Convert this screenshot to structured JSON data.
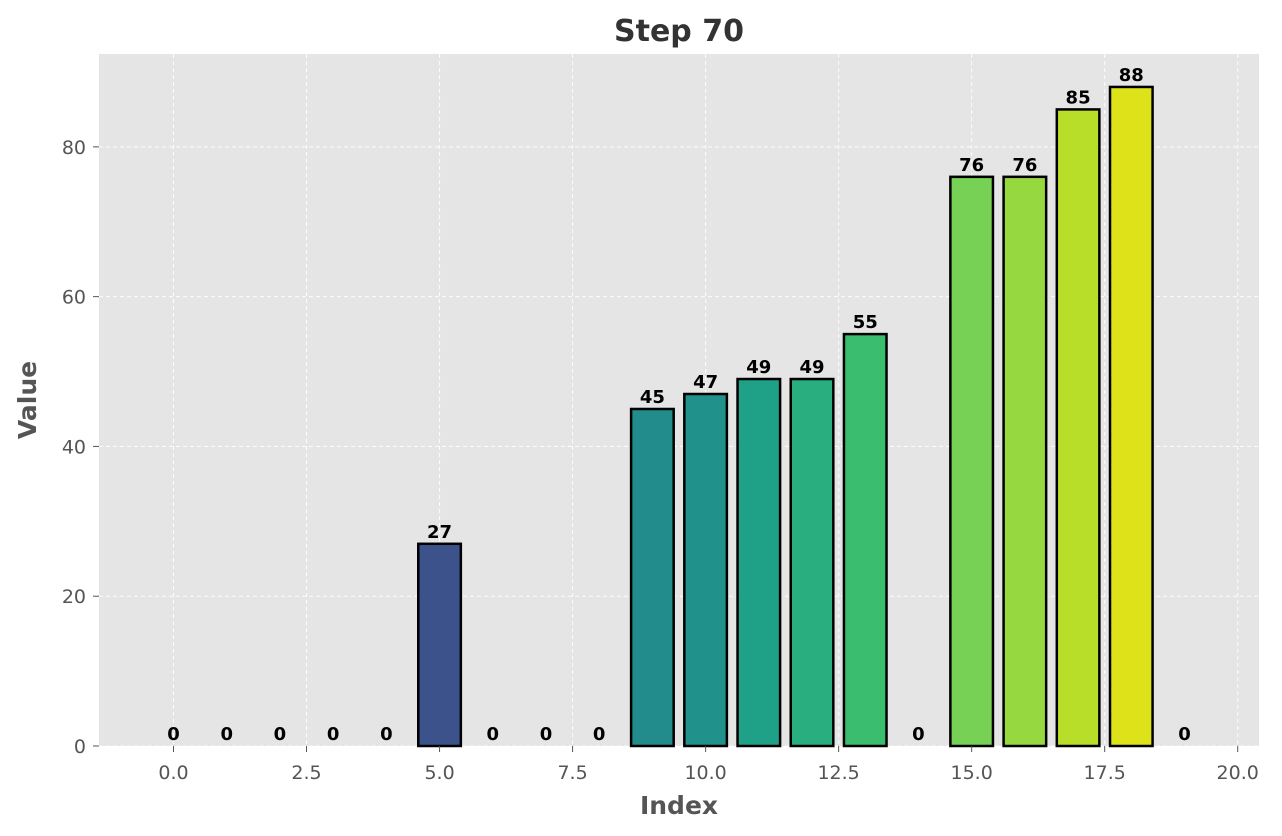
{
  "chart_data": {
    "type": "bar",
    "title": "Step 70",
    "xlabel": "Index",
    "ylabel": "Value",
    "x": [
      0,
      1,
      2,
      3,
      4,
      5,
      6,
      7,
      8,
      9,
      10,
      11,
      12,
      13,
      14,
      15,
      16,
      17,
      18,
      19
    ],
    "values": [
      0,
      0,
      0,
      0,
      0,
      27,
      0,
      0,
      0,
      45,
      47,
      49,
      49,
      55,
      0,
      76,
      76,
      85,
      88,
      0
    ],
    "data_labels": [
      "0",
      "0",
      "0",
      "0",
      "0",
      "27",
      "0",
      "0",
      "0",
      "45",
      "47",
      "49",
      "49",
      "55",
      "0",
      "76",
      "76",
      "85",
      "88",
      "0"
    ],
    "bar_colors": [
      "#440154",
      "#440154",
      "#440154",
      "#440154",
      "#440154",
      "#3b528b",
      "#440154",
      "#440154",
      "#440154",
      "#228c8d",
      "#21918c",
      "#1fa187",
      "#29af7f",
      "#3bbd70",
      "#440154",
      "#76d154",
      "#95d840",
      "#b8de29",
      "#dde318",
      "#440154"
    ],
    "xlim": [
      -1.4,
      20.4
    ],
    "ylim": [
      0,
      92.4
    ],
    "xticks": [
      0.0,
      2.5,
      5.0,
      7.5,
      10.0,
      12.5,
      15.0,
      17.5,
      20.0
    ],
    "xtick_labels": [
      "0.0",
      "2.5",
      "5.0",
      "7.5",
      "10.0",
      "12.5",
      "15.0",
      "17.5",
      "20.0"
    ],
    "yticks": [
      0,
      20,
      40,
      60,
      80
    ],
    "ytick_labels": [
      "0",
      "20",
      "40",
      "60",
      "80"
    ],
    "grid": true,
    "bar_edge_color": "#000000",
    "background_color": "#e5e5e5"
  }
}
